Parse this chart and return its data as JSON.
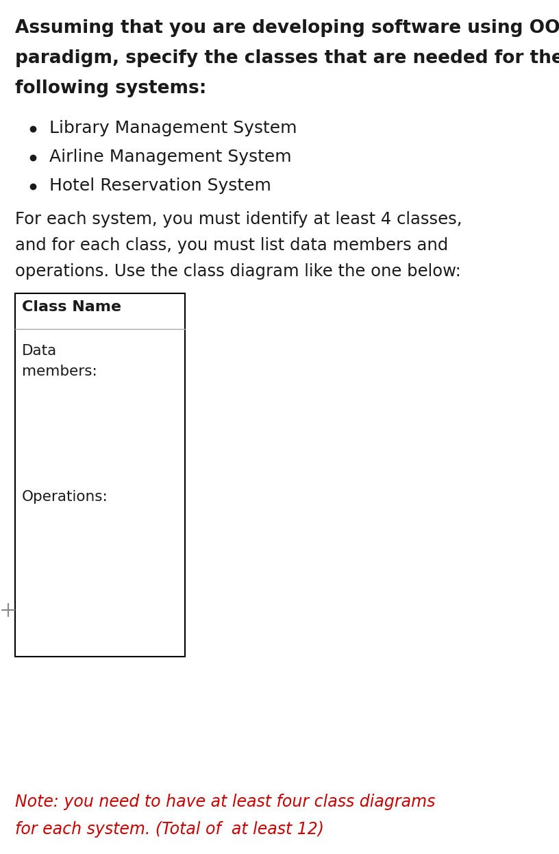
{
  "heading_lines": [
    "Assuming that you are developing software using OOP",
    "paradigm, specify the classes that are needed for the",
    "following systems:"
  ],
  "bullets": [
    "Library Management System",
    "Airline Management System",
    "Hotel Reservation System"
  ],
  "body_lines": [
    "For each system, you must identify at least 4 classes,",
    "and for each class, you must list data members and",
    "operations. Use the class diagram like the one below:"
  ],
  "class_name": "Class Name",
  "section1_line1": "Data",
  "section1_line2": "members:",
  "section2": "Operations:",
  "note_line1": "Note: you need to have at least four class diagrams",
  "note_line2": "for each system. (Total of  at least 12)",
  "bg_color": "#ffffff",
  "text_color": "#1a1a1a",
  "note_color": "#cc0000",
  "box_color": "#000000",
  "divider_color": "#aaaaaa"
}
